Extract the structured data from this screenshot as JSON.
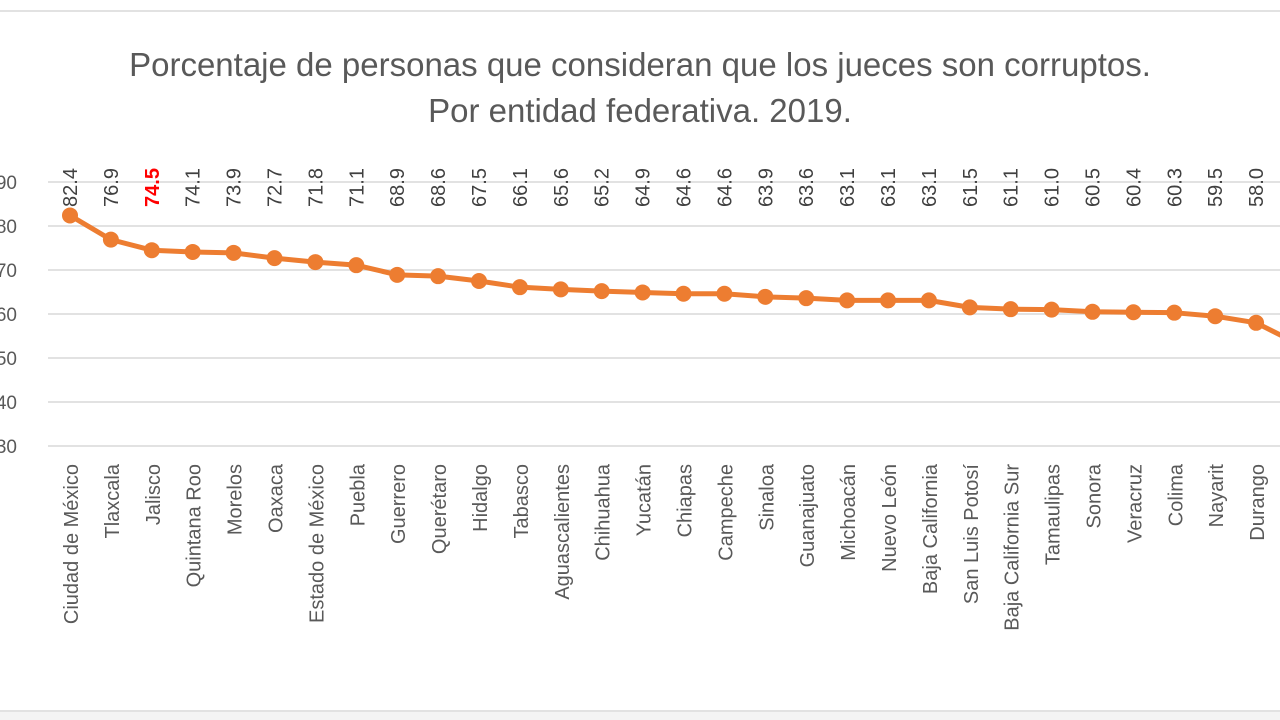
{
  "chart_data": {
    "type": "line",
    "title": "Porcentaje de personas que consideran que los jueces son corruptos.",
    "subtitle": "Por entidad federativa. 2019.",
    "xlabel": "",
    "ylabel": "",
    "ylim": [
      30,
      100
    ],
    "yticks": [
      30,
      40,
      50,
      60,
      70,
      80,
      90
    ],
    "ytick_labels": [
      "30",
      "40",
      "50",
      "60",
      "70",
      "80",
      "90"
    ],
    "grid": true,
    "legend": "none",
    "line_color": "#ED7D31",
    "highlight_label_color": "#FF0000",
    "highlight_category": "Jalisco",
    "categories": [
      "Ciudad de México",
      "Tlaxcala",
      "Jalisco",
      "Quintana Roo",
      "Morelos",
      "Oaxaca",
      "Estado de México",
      "Puebla",
      "Guerrero",
      "Querétaro",
      "Hidalgo",
      "Tabasco",
      "Aguascalientes",
      "Chihuahua",
      "Yucatán",
      "Chiapas",
      "Campeche",
      "Sinaloa",
      "Guanajuato",
      "Michoacán",
      "Nuevo León",
      "Baja California",
      "San Luis Potosí",
      "Baja California Sur",
      "Tamaulipas",
      "Sonora",
      "Veracruz",
      "Colima",
      "Nayarit",
      "Durango"
    ],
    "value_labels": [
      "82.4",
      "76.9",
      "74.5",
      "74.1",
      "73.9",
      "72.7",
      "71.8",
      "71.1",
      "68.9",
      "68.6",
      "67.5",
      "66.1",
      "65.6",
      "65.2",
      "64.9",
      "64.6",
      "64.6",
      "63.9",
      "63.6",
      "63.1",
      "63.1",
      "63.1",
      "61.5",
      "61.1",
      "61.0",
      "60.5",
      "60.4",
      "60.3",
      "59.5",
      "58.0"
    ],
    "values": [
      82.4,
      76.9,
      74.5,
      74.1,
      73.9,
      72.7,
      71.8,
      71.1,
      68.9,
      68.6,
      67.5,
      66.1,
      65.6,
      65.2,
      64.9,
      64.6,
      64.6,
      63.9,
      63.6,
      63.1,
      63.1,
      63.1,
      61.5,
      61.1,
      61.0,
      60.5,
      60.4,
      60.3,
      59.5,
      58.0
    ]
  }
}
